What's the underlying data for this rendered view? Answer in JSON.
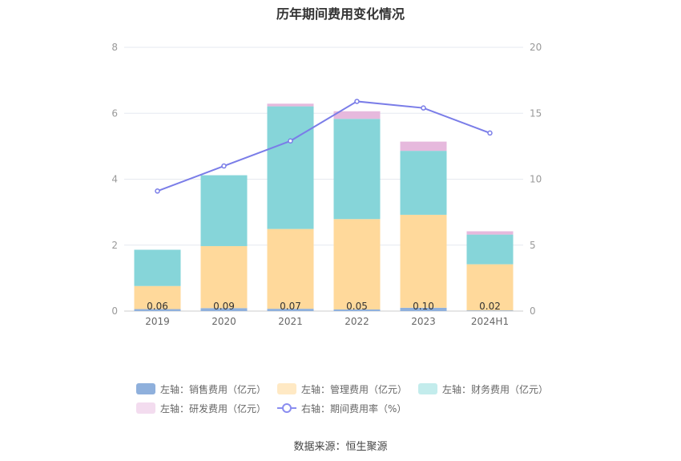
{
  "chart_data": {
    "type": "bar",
    "stacked": true,
    "title": "历年期间费用变化情况",
    "categories": [
      "2019",
      "2020",
      "2021",
      "2022",
      "2023",
      "2024H1"
    ],
    "y_left": {
      "min": 0,
      "max": 8,
      "ticks": [
        "0",
        "2",
        "4",
        "6",
        "8"
      ]
    },
    "y_right": {
      "min": 0,
      "max": 20,
      "ticks": [
        "0",
        "5",
        "10",
        "15",
        "20"
      ]
    },
    "series": [
      {
        "name": "左轴：销售费用（亿元）",
        "axis": "left",
        "color": "#8fb0dc",
        "values": [
          0.06,
          0.09,
          0.07,
          0.05,
          0.1,
          0.02
        ],
        "labels": [
          "0.06",
          "0.09",
          "0.07",
          "0.05",
          "0.10",
          "0.02"
        ]
      },
      {
        "name": "左轴：管理费用（亿元）",
        "axis": "left",
        "color": "#ffd99b",
        "values": [
          0.7,
          1.88,
          2.42,
          2.74,
          2.82,
          1.4
        ]
      },
      {
        "name": "左轴：财务费用（亿元）",
        "axis": "left",
        "color": "#86d5d9",
        "values": [
          1.1,
          2.15,
          3.72,
          3.04,
          1.94,
          0.9
        ]
      },
      {
        "name": "左轴：研发费用（亿元）",
        "axis": "left",
        "color": "#e6b9dd",
        "values": [
          0.0,
          0.0,
          0.08,
          0.23,
          0.28,
          0.1
        ]
      },
      {
        "name": "右轴：期间费用率（%）",
        "axis": "right",
        "type": "line",
        "color": "#7a7de8",
        "values": [
          9.1,
          11.0,
          12.9,
          15.9,
          15.4,
          13.5
        ]
      }
    ],
    "legend": [
      {
        "label": "左轴：销售费用（亿元）",
        "color": "#8fb0dc"
      },
      {
        "label": "左轴：管理费用（亿元）",
        "color": "#ffe9c4"
      },
      {
        "label": "左轴：财务费用（亿元）",
        "color": "#c3ecec"
      },
      {
        "label": "左轴：研发费用（亿元）",
        "color": "#f3dcef"
      },
      {
        "label": "右轴：期间费用率（%）",
        "color": "#8a8df0"
      }
    ],
    "source": "数据来源：恒生聚源"
  }
}
